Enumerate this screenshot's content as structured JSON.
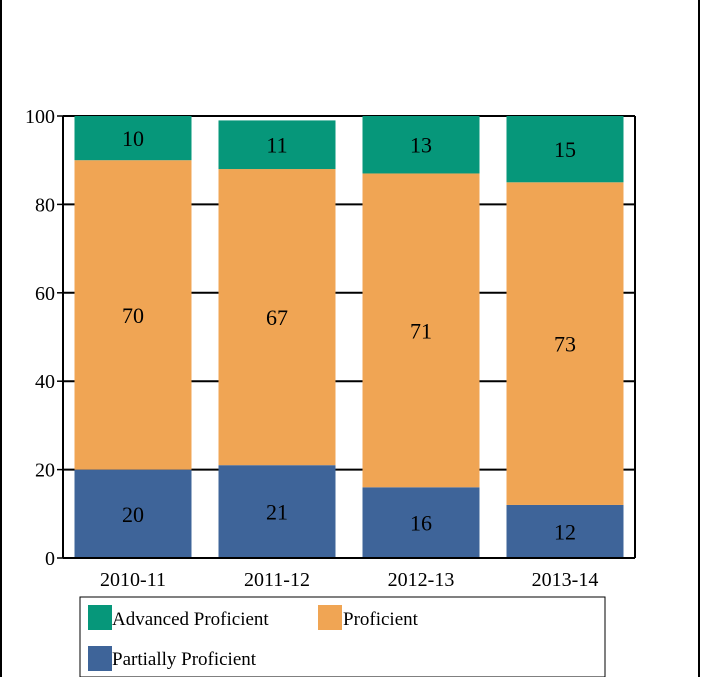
{
  "chart_data": {
    "type": "bar",
    "stacked": true,
    "categories": [
      "2010-11",
      "2011-12",
      "2012-13",
      "2013-14"
    ],
    "series": [
      {
        "name": "Partially Proficient",
        "color": "#3e6499",
        "values": [
          20,
          21,
          16,
          12
        ]
      },
      {
        "name": "Proficient",
        "color": "#f0a554",
        "values": [
          70,
          67,
          71,
          73
        ]
      },
      {
        "name": "Advanced Proficient",
        "color": "#06977a",
        "values": [
          10,
          11,
          13,
          15
        ]
      }
    ],
    "yticks": [
      0,
      20,
      40,
      60,
      80,
      100
    ],
    "ylim": [
      0,
      100
    ],
    "grid": true,
    "legend_position": "bottom",
    "legend_order": [
      "Advanced Proficient",
      "Proficient",
      "Partially Proficient"
    ]
  }
}
